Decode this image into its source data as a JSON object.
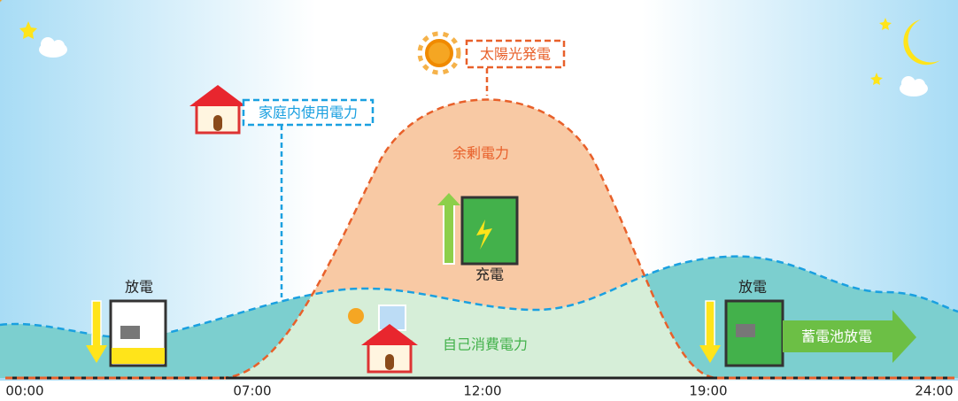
{
  "labels": {
    "solar": "太陽光発電",
    "household": "家庭内使用電力",
    "surplus": "余剰電力",
    "charge": "充電",
    "self_consumption": "自己消費電力",
    "discharge_night": "放電",
    "discharge_evening": "放電",
    "battery_discharge": "蓄電池放電"
  },
  "times": [
    "00:00",
    "07:00",
    "12:00",
    "19:00",
    "24:00"
  ]
}
